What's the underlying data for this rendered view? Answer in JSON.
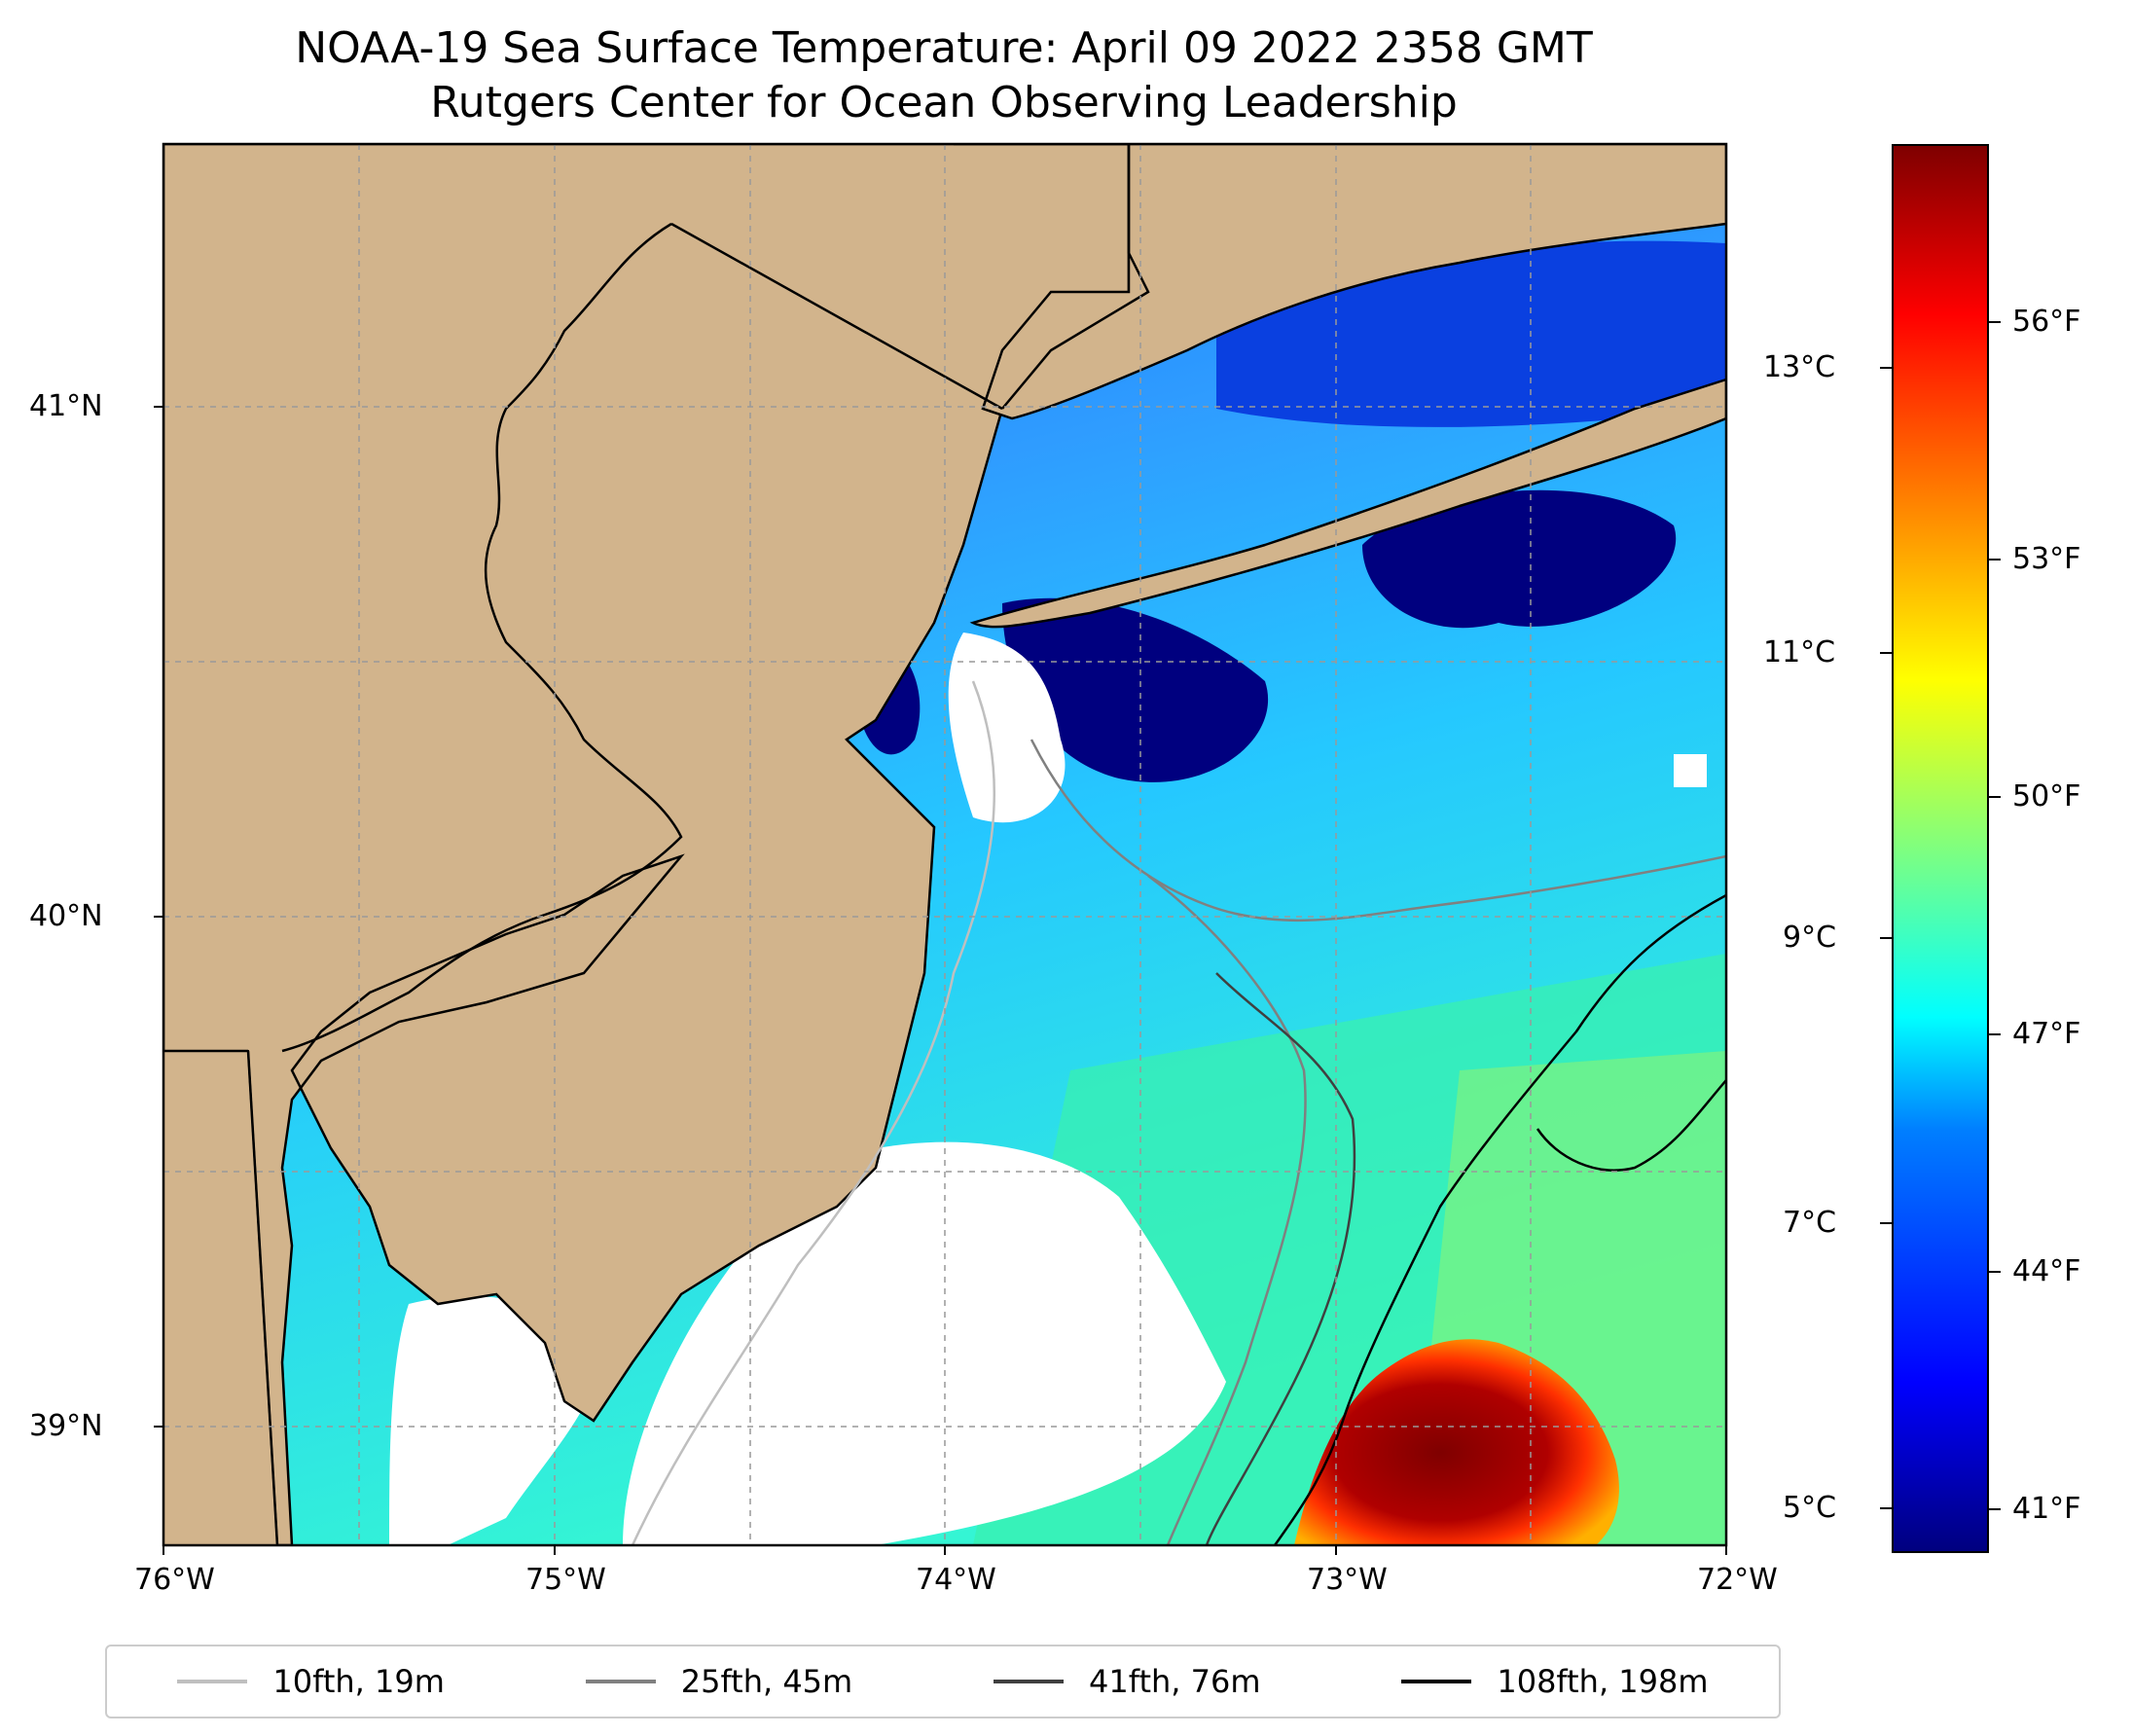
{
  "title": "NOAA-19 Sea Surface Temperature: April 09 2022 2358 GMT",
  "subtitle": "Rutgers Center for Ocean Observing Leadership",
  "axes": {
    "x_ticks": [
      "76°W",
      "75°W",
      "74°W",
      "73°W",
      "72°W"
    ],
    "y_ticks": [
      "41°N",
      "40°N",
      "39°N"
    ],
    "lon_range": [
      -76,
      -72
    ],
    "lat_range": [
      38.75,
      41.5
    ],
    "grid": true
  },
  "colorbar": {
    "celsius_ticks": [
      "13°C",
      "11°C",
      "9°C",
      "7°C",
      "5°C"
    ],
    "fahrenheit_ticks": [
      "56°F",
      "53°F",
      "50°F",
      "47°F",
      "44°F",
      "41°F"
    ],
    "colormap": "jet",
    "range_f": [
      40.0,
      58.0
    ]
  },
  "legend": [
    {
      "label": "10fth, 19m",
      "color": "#bfbfbf"
    },
    {
      "label": "25fth, 45m",
      "color": "#808080"
    },
    {
      "label": "41fth, 76m",
      "color": "#404040"
    },
    {
      "label": "108fth, 198m",
      "color": "#000000"
    }
  ],
  "colors": {
    "land": "#d2b48c",
    "ocean_cold": "#00007f",
    "ocean_mid": "#00a0ff",
    "warm_eddy": "#7f0000",
    "no_data": "#ffffff"
  }
}
